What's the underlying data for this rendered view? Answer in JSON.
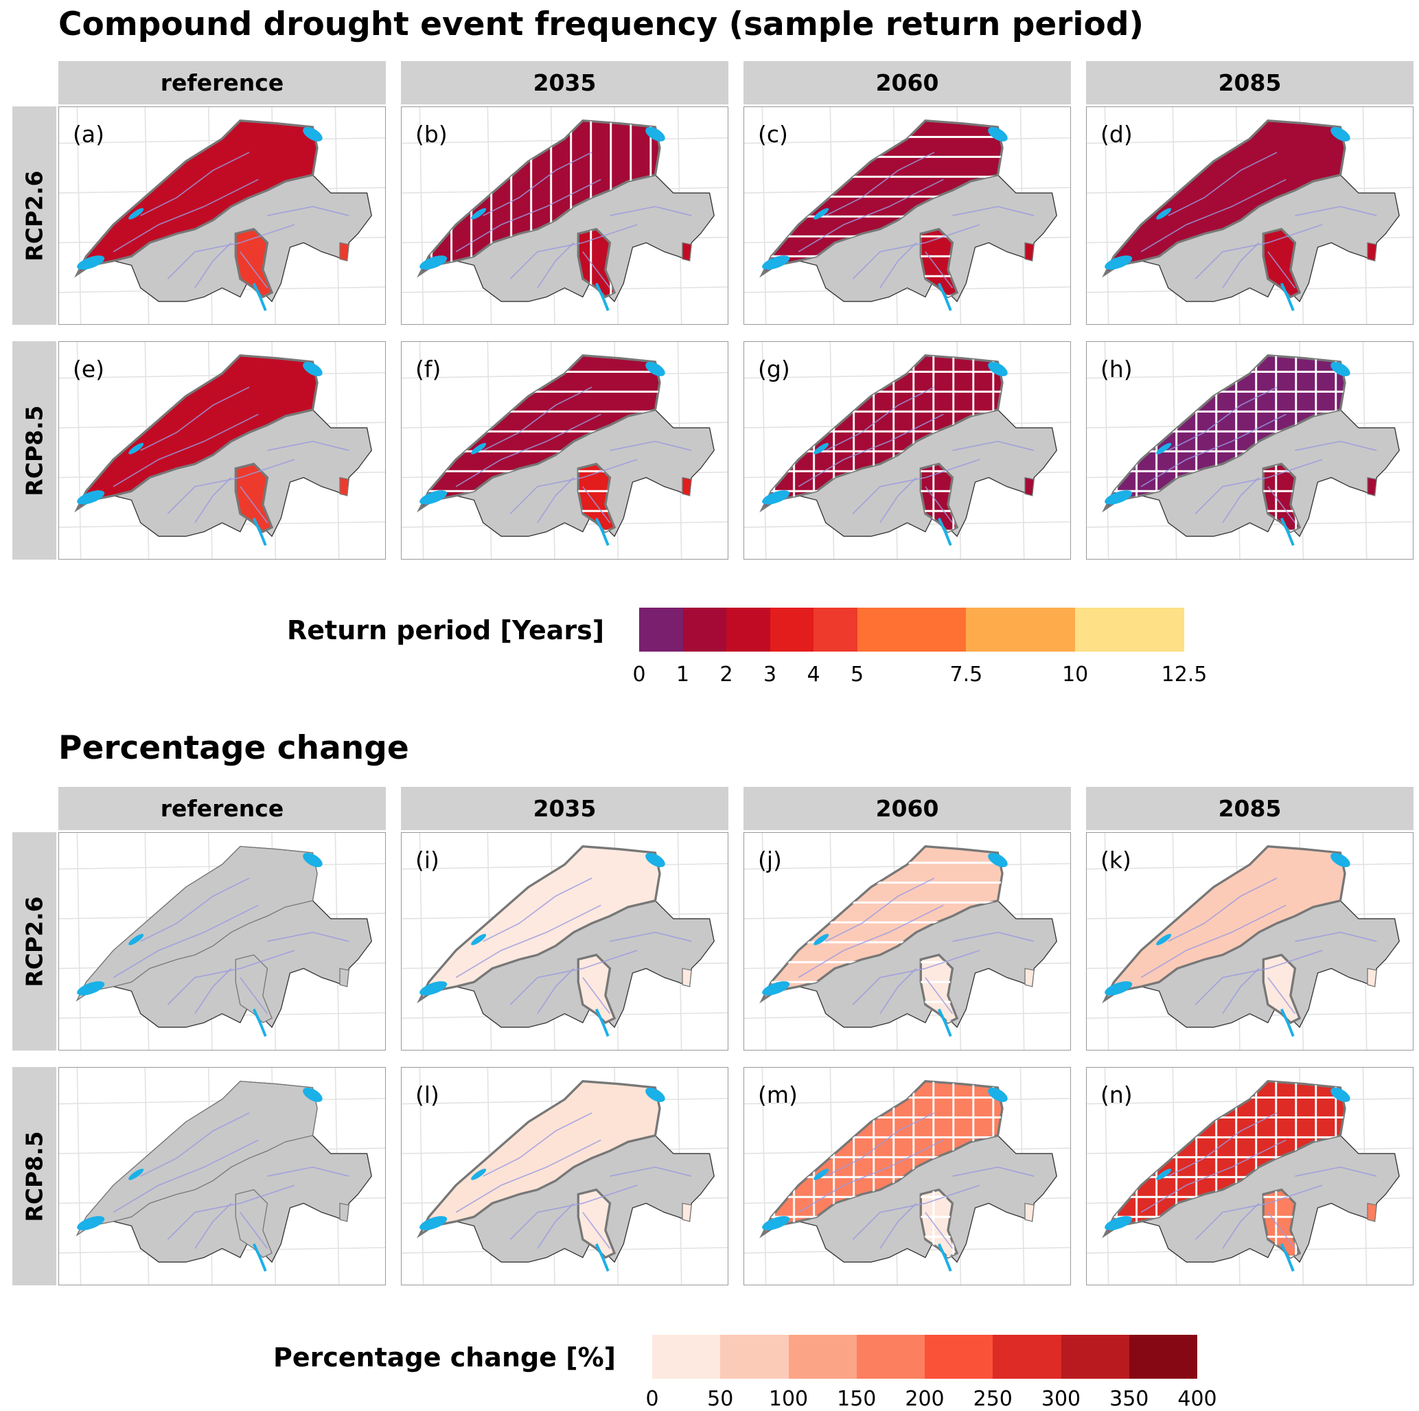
{
  "chart_data": [
    {
      "type": "map-facet",
      "title": "Compound drought event frequency (sample return period)",
      "columns": [
        "reference",
        "2035",
        "2060",
        "2085"
      ],
      "rows": [
        "RCP2.6",
        "RCP8.5"
      ],
      "legend": {
        "title": "Return period [Years]",
        "breaks": [
          "0",
          "1",
          "2",
          "3",
          "4",
          "5",
          "7.5",
          "10",
          "12.5"
        ],
        "break_values": [
          0,
          1,
          2,
          3,
          4,
          5,
          7.5,
          10,
          12.5
        ],
        "colors": [
          "#7a1f6e",
          "#a40a35",
          "#c10b25",
          "#e31c1c",
          "#ee3a2c",
          "#fe7133",
          "#feab4b",
          "#fee087"
        ]
      },
      "panels": [
        {
          "tag": "(a)",
          "row": 0,
          "col": 0,
          "north": "#c10b25",
          "south": "#ee3a2c",
          "hatch": "none"
        },
        {
          "tag": "(b)",
          "row": 0,
          "col": 1,
          "north": "#a40a35",
          "south": "#c10b25",
          "hatch": "vertical"
        },
        {
          "tag": "(c)",
          "row": 0,
          "col": 2,
          "north": "#a40a35",
          "south": "#c10b25",
          "hatch": "horizontal"
        },
        {
          "tag": "(d)",
          "row": 0,
          "col": 3,
          "north": "#a40a35",
          "south": "#c10b25",
          "hatch": "none"
        },
        {
          "tag": "(e)",
          "row": 1,
          "col": 0,
          "north": "#c10b25",
          "south": "#ee3a2c",
          "hatch": "none"
        },
        {
          "tag": "(f)",
          "row": 1,
          "col": 1,
          "north": "#a40a35",
          "south": "#e31c1c",
          "hatch": "horizontal"
        },
        {
          "tag": "(g)",
          "row": 1,
          "col": 2,
          "north": "#a40a35",
          "south": "#a40a35",
          "hatch": "grid"
        },
        {
          "tag": "(h)",
          "row": 1,
          "col": 3,
          "north": "#7a1f6e",
          "south": "#a40a35",
          "hatch": "grid"
        }
      ]
    },
    {
      "type": "map-facet",
      "title": "Percentage change",
      "columns": [
        "reference",
        "2035",
        "2060",
        "2085"
      ],
      "rows": [
        "RCP2.6",
        "RCP8.5"
      ],
      "legend": {
        "title": "Percentage change [%]",
        "breaks": [
          "0",
          "50",
          "100",
          "150",
          "200",
          "250",
          "300",
          "350",
          "400"
        ],
        "break_values": [
          0,
          50,
          100,
          150,
          200,
          250,
          300,
          350,
          400
        ],
        "colors": [
          "#fde9df",
          "#fccbb8",
          "#fca486",
          "#fc7f5f",
          "#fa5238",
          "#de2b25",
          "#b91a1f",
          "#860814"
        ]
      },
      "panels": [
        {
          "tag": "",
          "row": 0,
          "col": 0,
          "north": "#c8c8c8",
          "south": "#c8c8c8",
          "hatch": "none"
        },
        {
          "tag": "(i)",
          "row": 0,
          "col": 1,
          "north": "#fde9df",
          "south": "#fde9df",
          "hatch": "none"
        },
        {
          "tag": "(j)",
          "row": 0,
          "col": 2,
          "north": "#fccbb8",
          "south": "#fde9df",
          "hatch": "horizontal"
        },
        {
          "tag": "(k)",
          "row": 0,
          "col": 3,
          "north": "#fccbb8",
          "south": "#fde9df",
          "hatch": "none"
        },
        {
          "tag": "",
          "row": 1,
          "col": 0,
          "north": "#c8c8c8",
          "south": "#c8c8c8",
          "hatch": "none"
        },
        {
          "tag": "(l)",
          "row": 1,
          "col": 1,
          "north": "#fde3d6",
          "south": "#fde9df",
          "hatch": "none"
        },
        {
          "tag": "(m)",
          "row": 1,
          "col": 2,
          "north": "#fc7f5f",
          "south": "#fde9df",
          "hatch": "grid"
        },
        {
          "tag": "(n)",
          "row": 1,
          "col": 3,
          "north": "#de2b25",
          "south": "#fc7f5f",
          "hatch": "grid"
        }
      ]
    }
  ],
  "colors": {
    "land": "#c8c8c8",
    "lake": "#1ab0e8",
    "river": "#9a9ae0",
    "strip": "#d1d1d1"
  }
}
